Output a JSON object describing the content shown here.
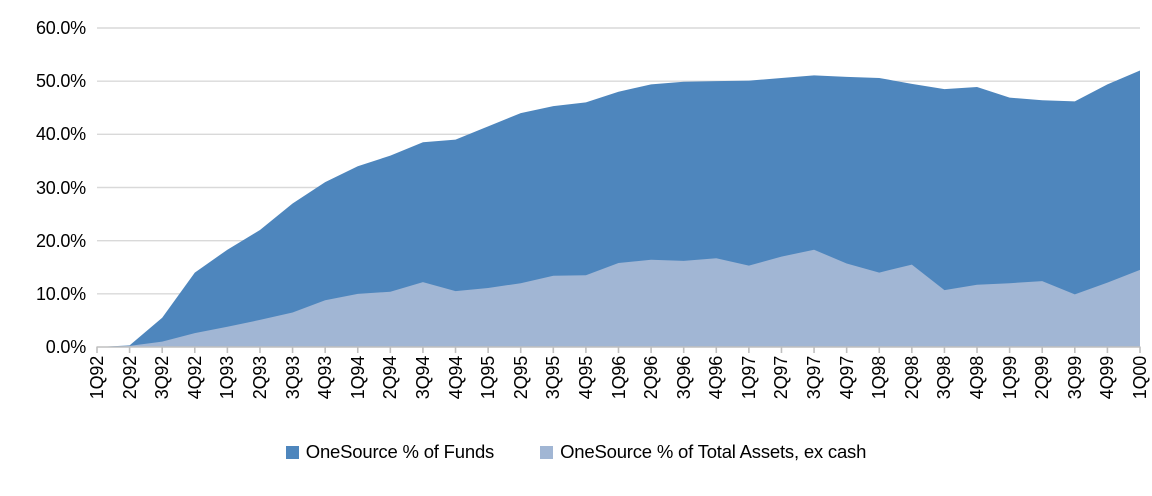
{
  "chart_data": {
    "type": "area",
    "title": "",
    "categories": [
      "1Q92",
      "2Q92",
      "3Q92",
      "4Q92",
      "1Q93",
      "2Q93",
      "3Q93",
      "4Q93",
      "1Q94",
      "2Q94",
      "3Q94",
      "4Q94",
      "1Q95",
      "2Q95",
      "3Q95",
      "4Q95",
      "1Q96",
      "2Q96",
      "3Q96",
      "4Q96",
      "1Q97",
      "2Q97",
      "3Q97",
      "4Q97",
      "1Q98",
      "2Q98",
      "3Q98",
      "4Q98",
      "1Q99",
      "2Q99",
      "3Q99",
      "4Q99",
      "1Q00"
    ],
    "series": [
      {
        "name": "OneSource % of Funds",
        "color": "#4e86bd",
        "values": [
          0,
          0.3,
          5.5,
          14.0,
          18.3,
          22.0,
          27.0,
          31.0,
          34.0,
          36.0,
          38.5,
          39.0,
          41.5,
          44.0,
          45.3,
          46.0,
          48.0,
          49.4,
          49.9,
          50.0,
          50.1,
          50.6,
          51.1,
          50.8,
          50.6,
          49.5,
          48.5,
          48.9,
          46.9,
          46.4,
          46.2,
          49.4,
          52.0
        ]
      },
      {
        "name": "OneSource % of Total Assets, ex cash",
        "color": "#a1b6d4",
        "values": [
          0,
          0.2,
          1.0,
          2.6,
          3.8,
          5.1,
          6.5,
          8.8,
          10.0,
          10.4,
          12.2,
          10.5,
          11.1,
          12.0,
          13.4,
          13.5,
          15.8,
          16.4,
          16.2,
          16.7,
          15.3,
          17.0,
          18.3,
          15.7,
          14.0,
          15.5,
          10.7,
          11.7,
          12.0,
          12.4,
          9.9,
          12.1,
          14.5
        ]
      }
    ],
    "y_axis": {
      "min": 0,
      "max": 60,
      "step": 10,
      "tick_labels": [
        "0.0%",
        "10.0%",
        "20.0%",
        "30.0%",
        "40.0%",
        "50.0%",
        "60.0%"
      ]
    },
    "x_axis": {
      "label_rotation_deg": 90,
      "placement": "on_tick_marks"
    },
    "legend": {
      "position": "bottom"
    },
    "grid": true,
    "colors": {
      "gridline": "#d9d9d9",
      "axis": "#bfbfbf",
      "text": "#000000",
      "background": "#ffffff"
    }
  }
}
